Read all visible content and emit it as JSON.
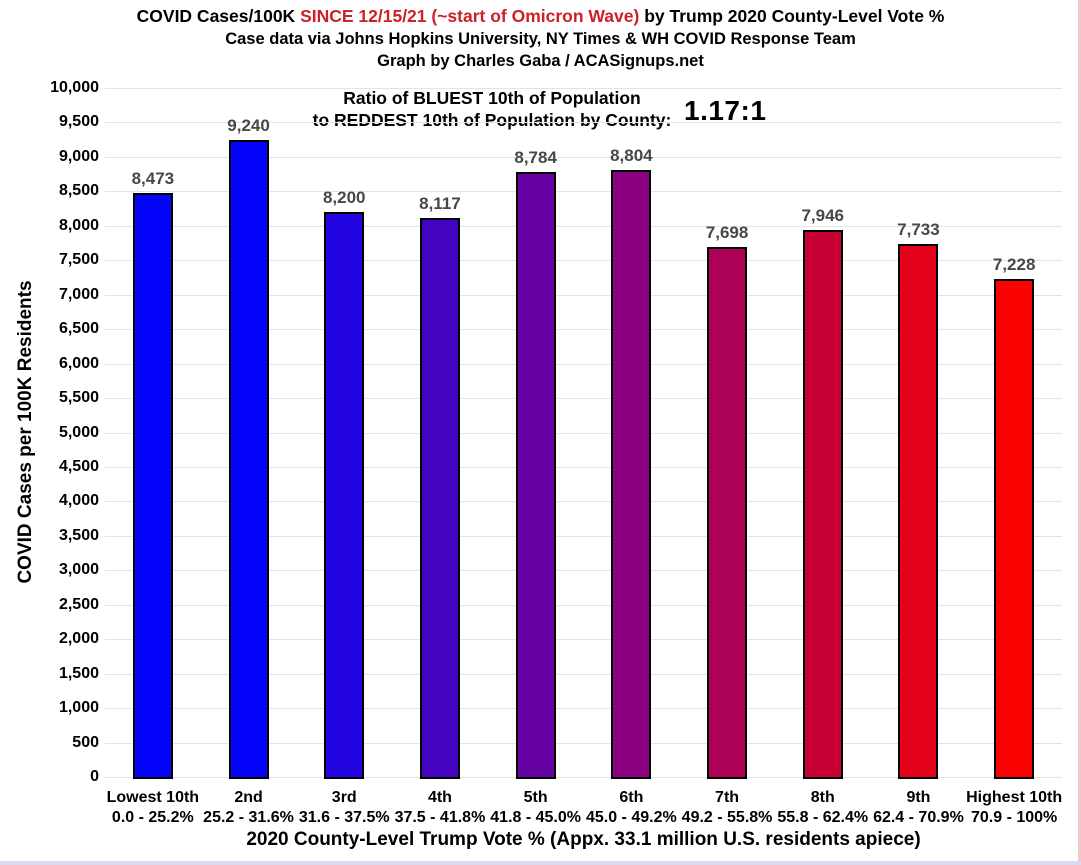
{
  "title": {
    "line1_part1": "COVID Cases/100K ",
    "line1_part2_red": "SINCE 12/15/21 (~start of Omicron Wave)",
    "line1_part3": " by Trump 2020 County-Level Vote %",
    "line2": "Case data via Johns Hopkins University, NY Times & WH COVID Response Team",
    "line3": "Graph by Charles Gaba / ACASignups.net"
  },
  "annotation": {
    "line1": "Ratio of BLUEST 10th of Population",
    "line2": "to REDDEST 10th of Population by County:",
    "value": "1.17:1"
  },
  "colors": {
    "title_accent": "#cc2127",
    "value_label": "#474747",
    "gridline": "#e3e3e3",
    "bar_border": "#000000"
  },
  "chart_data": {
    "type": "bar",
    "title": "COVID Cases/100K SINCE 12/15/21 (~start of Omicron Wave) by Trump 2020 County-Level Vote %",
    "subtitle": "Case data via Johns Hopkins University, NY Times & WH COVID Response Team",
    "credit": "Graph by Charles Gaba / ACASignups.net",
    "xlabel": "2020 County-Level Trump Vote % (Appx. 33.1 million U.S. residents apiece)",
    "ylabel": "COVID Cases per 100K Residents",
    "ylim": [
      0,
      10000
    ],
    "ytick_step": 500,
    "ytick_labels": [
      "0",
      "500",
      "1,000",
      "1,500",
      "2,000",
      "2,500",
      "3,000",
      "3,500",
      "4,000",
      "4,500",
      "5,000",
      "5,500",
      "6,000",
      "6,500",
      "7,000",
      "7,500",
      "8,000",
      "8,500",
      "9,000",
      "9,500",
      "10,000"
    ],
    "grid": true,
    "legend": null,
    "categories": [
      {
        "name": "Lowest 10th",
        "range": "0.0 - 25.2%"
      },
      {
        "name": "2nd",
        "range": "25.2 - 31.6%"
      },
      {
        "name": "3rd",
        "range": "31.6 - 37.5%"
      },
      {
        "name": "4th",
        "range": "37.5 - 41.8%"
      },
      {
        "name": "5th",
        "range": "41.8 - 45.0%"
      },
      {
        "name": "6th",
        "range": "45.0 - 49.2%"
      },
      {
        "name": "7th",
        "range": "49.2 - 55.8%"
      },
      {
        "name": "8th",
        "range": "55.8 - 62.4%"
      },
      {
        "name": "9th",
        "range": "62.4 - 70.9%"
      },
      {
        "name": "Highest 10th",
        "range": "70.9 - 100%"
      }
    ],
    "values": [
      8473,
      9240,
      8200,
      8117,
      8784,
      8804,
      7698,
      7946,
      7733,
      7228
    ],
    "value_labels": [
      "8,473",
      "9,240",
      "8,200",
      "8,117",
      "8,784",
      "8,804",
      "7,698",
      "7,946",
      "7,733",
      "7,228"
    ],
    "bar_colors": [
      "#0404fa",
      "#0404fa",
      "#2205e0",
      "#4403c0",
      "#6602a2",
      "#8c0182",
      "#ac0156",
      "#c80134",
      "#e3011a",
      "#fb0202"
    ]
  }
}
